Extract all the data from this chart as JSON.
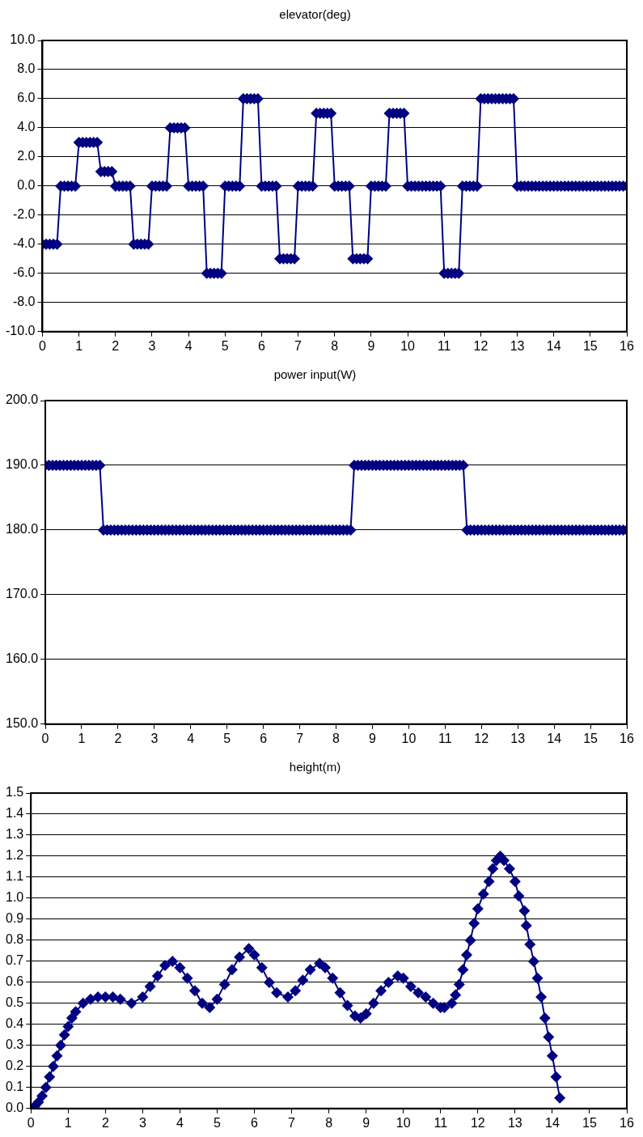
{
  "chart_data": [
    {
      "type": "line",
      "title": "elevator(deg)",
      "marker": "diamond",
      "grid": "y",
      "xlim": [
        0,
        16
      ],
      "xticks": [
        0,
        1,
        2,
        3,
        4,
        5,
        6,
        7,
        8,
        9,
        10,
        11,
        12,
        13,
        14,
        15,
        16
      ],
      "ylim": [
        -10,
        10
      ],
      "yticks": [
        {
          "value": -10,
          "label": "-10.0"
        },
        {
          "value": -8,
          "label": "-8.0"
        },
        {
          "value": -6,
          "label": "-6.0"
        },
        {
          "value": -4,
          "label": "-4.0"
        },
        {
          "value": -2,
          "label": "-2.0"
        },
        {
          "value": 0,
          "label": "0.0"
        },
        {
          "value": 2,
          "label": "2.0"
        },
        {
          "value": 4,
          "label": "4.0"
        },
        {
          "value": 6,
          "label": "6.0"
        },
        {
          "value": 8,
          "label": "8.0"
        },
        {
          "value": 10,
          "label": "10.0"
        }
      ],
      "x": [
        0,
        0.1,
        0.2,
        0.3,
        0.4,
        0.5,
        0.6,
        0.7,
        0.8,
        0.9,
        1,
        1.1,
        1.2,
        1.3,
        1.4,
        1.5,
        1.6,
        1.7,
        1.8,
        1.9,
        2,
        2.1,
        2.2,
        2.3,
        2.4,
        2.5,
        2.6,
        2.7,
        2.8,
        2.9,
        3,
        3.1,
        3.2,
        3.3,
        3.4,
        3.5,
        3.6,
        3.7,
        3.8,
        3.9,
        4,
        4.1,
        4.2,
        4.3,
        4.4,
        4.5,
        4.6,
        4.7,
        4.8,
        4.9,
        5,
        5.1,
        5.2,
        5.3,
        5.4,
        5.5,
        5.6,
        5.7,
        5.8,
        5.9,
        6,
        6.1,
        6.2,
        6.3,
        6.4,
        6.5,
        6.6,
        6.7,
        6.8,
        6.9,
        7,
        7.1,
        7.2,
        7.3,
        7.4,
        7.5,
        7.6,
        7.7,
        7.8,
        7.9,
        8,
        8.1,
        8.2,
        8.3,
        8.4,
        8.5,
        8.6,
        8.7,
        8.8,
        8.9,
        9,
        9.1,
        9.2,
        9.3,
        9.4,
        9.5,
        9.6,
        9.7,
        9.8,
        9.9,
        10,
        10.1,
        10.2,
        10.3,
        10.4,
        10.5,
        10.6,
        10.7,
        10.8,
        10.9,
        11,
        11.1,
        11.2,
        11.3,
        11.4,
        11.5,
        11.6,
        11.7,
        11.8,
        11.9,
        12,
        12.1,
        12.2,
        12.3,
        12.4,
        12.5,
        12.6,
        12.7,
        12.8,
        12.9,
        13,
        13.1,
        13.2,
        13.3,
        13.4,
        13.5,
        13.6,
        13.7,
        13.8,
        13.9,
        14,
        14.1,
        14.2,
        14.3,
        14.4,
        14.5,
        14.6,
        14.7,
        14.8,
        14.9,
        15,
        15.1,
        15.2,
        15.3,
        15.4,
        15.5,
        15.6,
        15.7,
        15.8,
        15.9,
        16
      ],
      "series": [
        {
          "color": "#000080",
          "values": [
            -4,
            -4,
            -4,
            -4,
            -4,
            0,
            0,
            0,
            0,
            0,
            3,
            3,
            3,
            3,
            3,
            3,
            1,
            1,
            1,
            1,
            0,
            0,
            0,
            0,
            0,
            -4,
            -4,
            -4,
            -4,
            -4,
            0,
            0,
            0,
            0,
            0,
            4,
            4,
            4,
            4,
            4,
            0,
            0,
            0,
            0,
            0,
            -6,
            -6,
            -6,
            -6,
            -6,
            0,
            0,
            0,
            0,
            0,
            6,
            6,
            6,
            6,
            6,
            0,
            0,
            0,
            0,
            0,
            -5,
            -5,
            -5,
            -5,
            -5,
            0,
            0,
            0,
            0,
            0,
            5,
            5,
            5,
            5,
            5,
            0,
            0,
            0,
            0,
            0,
            -5,
            -5,
            -5,
            -5,
            -5,
            0,
            0,
            0,
            0,
            0,
            5,
            5,
            5,
            5,
            5,
            0,
            0,
            0,
            0,
            0,
            0,
            0,
            0,
            0,
            0,
            -6,
            -6,
            -6,
            -6,
            -6,
            0,
            0,
            0,
            0,
            0,
            6,
            6,
            6,
            6,
            6,
            6,
            6,
            6,
            6,
            6,
            0,
            0,
            0,
            0,
            0,
            0,
            0,
            0,
            0,
            0,
            0,
            0,
            0,
            0,
            0,
            0,
            0,
            0,
            0,
            0,
            0,
            0,
            0,
            0,
            0,
            0,
            0,
            0,
            0,
            0,
            0
          ]
        }
      ]
    },
    {
      "type": "line",
      "title": "power input(W)",
      "marker": "diamond",
      "grid": "y",
      "xlim": [
        0,
        16
      ],
      "xticks": [
        0,
        1,
        2,
        3,
        4,
        5,
        6,
        7,
        8,
        9,
        10,
        11,
        12,
        13,
        14,
        15,
        16
      ],
      "ylim": [
        150,
        200
      ],
      "yticks": [
        {
          "value": 150,
          "label": "150.0"
        },
        {
          "value": 160,
          "label": "160.0"
        },
        {
          "value": 170,
          "label": "170.0"
        },
        {
          "value": 180,
          "label": "180.0"
        },
        {
          "value": 190,
          "label": "190.0"
        },
        {
          "value": 200,
          "label": "200.0"
        }
      ],
      "x": [
        0,
        0.1,
        0.2,
        0.3,
        0.4,
        0.5,
        0.6,
        0.7,
        0.8,
        0.9,
        1,
        1.1,
        1.2,
        1.3,
        1.4,
        1.5,
        1.6,
        1.7,
        1.8,
        1.9,
        2,
        2.1,
        2.2,
        2.3,
        2.4,
        2.5,
        2.6,
        2.7,
        2.8,
        2.9,
        3,
        3.1,
        3.2,
        3.3,
        3.4,
        3.5,
        3.6,
        3.7,
        3.8,
        3.9,
        4,
        4.1,
        4.2,
        4.3,
        4.4,
        4.5,
        4.6,
        4.7,
        4.8,
        4.9,
        5,
        5.1,
        5.2,
        5.3,
        5.4,
        5.5,
        5.6,
        5.7,
        5.8,
        5.9,
        6,
        6.1,
        6.2,
        6.3,
        6.4,
        6.5,
        6.6,
        6.7,
        6.8,
        6.9,
        7,
        7.1,
        7.2,
        7.3,
        7.4,
        7.5,
        7.6,
        7.7,
        7.8,
        7.9,
        8,
        8.1,
        8.2,
        8.3,
        8.4,
        8.5,
        8.6,
        8.7,
        8.8,
        8.9,
        9,
        9.1,
        9.2,
        9.3,
        9.4,
        9.5,
        9.6,
        9.7,
        9.8,
        9.9,
        10,
        10.1,
        10.2,
        10.3,
        10.4,
        10.5,
        10.6,
        10.7,
        10.8,
        10.9,
        11,
        11.1,
        11.2,
        11.3,
        11.4,
        11.5,
        11.6,
        11.7,
        11.8,
        11.9,
        12,
        12.1,
        12.2,
        12.3,
        12.4,
        12.5,
        12.6,
        12.7,
        12.8,
        12.9,
        13,
        13.1,
        13.2,
        13.3,
        13.4,
        13.5,
        13.6,
        13.7,
        13.8,
        13.9,
        14,
        14.1,
        14.2,
        14.3,
        14.4,
        14.5,
        14.6,
        14.7,
        14.8,
        14.9,
        15,
        15.1,
        15.2,
        15.3,
        15.4,
        15.5,
        15.6,
        15.7,
        15.8,
        15.9,
        16
      ],
      "series": [
        {
          "color": "#000080",
          "values": [
            190,
            190,
            190,
            190,
            190,
            190,
            190,
            190,
            190,
            190,
            190,
            190,
            190,
            190,
            190,
            190,
            180,
            180,
            180,
            180,
            180,
            180,
            180,
            180,
            180,
            180,
            180,
            180,
            180,
            180,
            180,
            180,
            180,
            180,
            180,
            180,
            180,
            180,
            180,
            180,
            180,
            180,
            180,
            180,
            180,
            180,
            180,
            180,
            180,
            180,
            180,
            180,
            180,
            180,
            180,
            180,
            180,
            180,
            180,
            180,
            180,
            180,
            180,
            180,
            180,
            180,
            180,
            180,
            180,
            180,
            180,
            180,
            180,
            180,
            180,
            180,
            180,
            180,
            180,
            180,
            180,
            180,
            180,
            180,
            180,
            190,
            190,
            190,
            190,
            190,
            190,
            190,
            190,
            190,
            190,
            190,
            190,
            190,
            190,
            190,
            190,
            190,
            190,
            190,
            190,
            190,
            190,
            190,
            190,
            190,
            190,
            190,
            190,
            190,
            190,
            190,
            180,
            180,
            180,
            180,
            180,
            180,
            180,
            180,
            180,
            180,
            180,
            180,
            180,
            180,
            180,
            180,
            180,
            180,
            180,
            180,
            180,
            180,
            180,
            180,
            180,
            180,
            180,
            180,
            180,
            180,
            180,
            180,
            180,
            180,
            180,
            180,
            180,
            180,
            180,
            180,
            180,
            180,
            180,
            180,
            180
          ]
        }
      ]
    },
    {
      "type": "line",
      "title": "height(m)",
      "marker": "diamond",
      "grid": "y",
      "xlim": [
        0,
        16
      ],
      "xticks": [
        0,
        1,
        2,
        3,
        4,
        5,
        6,
        7,
        8,
        9,
        10,
        11,
        12,
        13,
        14,
        15,
        16
      ],
      "ylim": [
        0,
        1.5
      ],
      "yticks": [
        {
          "value": 0,
          "label": "0.0"
        },
        0.1,
        0.2,
        0.3,
        0.4,
        0.5,
        0.6,
        0.7,
        0.8,
        0.9,
        {
          "value": 1,
          "label": "1.0"
        },
        1.1,
        1.2,
        1.3,
        1.4,
        1.5
      ],
      "x": [
        0,
        0.1,
        0.2,
        0.3,
        0.4,
        0.5,
        0.6,
        0.7,
        0.8,
        0.9,
        1,
        1.1,
        1.2,
        1.4,
        1.6,
        1.8,
        2,
        2.2,
        2.4,
        2.7,
        3,
        3.2,
        3.4,
        3.6,
        3.8,
        4,
        4.2,
        4.4,
        4.6,
        4.8,
        5,
        5.2,
        5.4,
        5.6,
        5.85,
        6,
        6.2,
        6.4,
        6.6,
        6.9,
        7.1,
        7.3,
        7.5,
        7.75,
        7.9,
        8.1,
        8.3,
        8.5,
        8.7,
        8.85,
        9,
        9.2,
        9.4,
        9.6,
        9.85,
        10,
        10.2,
        10.4,
        10.6,
        10.8,
        11,
        11.1,
        11.3,
        11.4,
        11.5,
        11.6,
        11.7,
        11.8,
        11.9,
        12,
        12.15,
        12.3,
        12.4,
        12.5,
        12.6,
        12.7,
        12.85,
        13,
        13.1,
        13.25,
        13.3,
        13.4,
        13.5,
        13.6,
        13.7,
        13.8,
        13.9,
        14,
        14.1,
        14.2
      ],
      "series": [
        {
          "color": "#000080",
          "values": [
            0,
            0.01,
            0.03,
            0.06,
            0.1,
            0.15,
            0.2,
            0.25,
            0.3,
            0.35,
            0.39,
            0.43,
            0.46,
            0.5,
            0.52,
            0.53,
            0.53,
            0.53,
            0.52,
            0.5,
            0.53,
            0.58,
            0.63,
            0.68,
            0.7,
            0.67,
            0.62,
            0.56,
            0.5,
            0.48,
            0.52,
            0.59,
            0.66,
            0.72,
            0.76,
            0.73,
            0.67,
            0.6,
            0.55,
            0.53,
            0.56,
            0.61,
            0.66,
            0.69,
            0.67,
            0.62,
            0.55,
            0.49,
            0.44,
            0.43,
            0.45,
            0.5,
            0.56,
            0.6,
            0.63,
            0.62,
            0.58,
            0.55,
            0.53,
            0.5,
            0.48,
            0.48,
            0.5,
            0.54,
            0.59,
            0.66,
            0.73,
            0.8,
            0.88,
            0.95,
            1.02,
            1.08,
            1.14,
            1.18,
            1.2,
            1.18,
            1.14,
            1.08,
            1.01,
            0.94,
            0.87,
            0.78,
            0.7,
            0.62,
            0.53,
            0.43,
            0.34,
            0.25,
            0.15,
            0.05
          ]
        }
      ]
    }
  ]
}
